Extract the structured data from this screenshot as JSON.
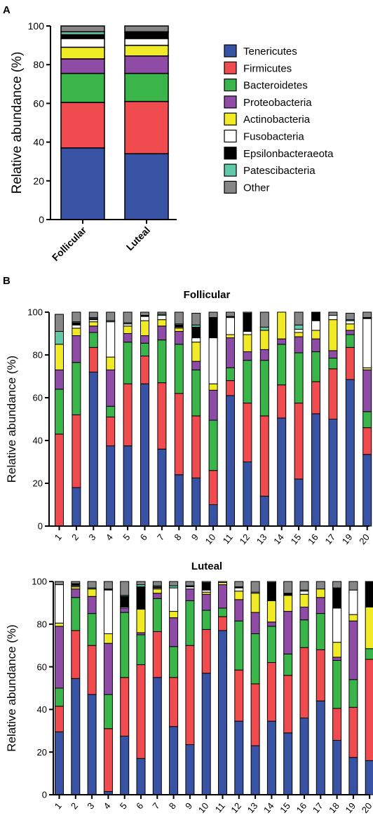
{
  "colors": {
    "Tenericutes": "#3953A4",
    "Firmicutes": "#F04B4E",
    "Bacteroidetes": "#3AB54A",
    "Proteobacteria": "#8E4CA6",
    "Actinobacteria": "#F1EA27",
    "Fusobacteria": "#FFFFFF",
    "Epsilonbacteraeota": "#000000",
    "Patescibacteria": "#62C9A8",
    "Other": "#868686"
  },
  "chart_data": [
    {
      "panel": "A",
      "type": "bar",
      "stacked": true,
      "title": "",
      "ylabel": "Relative abundance (%)",
      "ylim": [
        0,
        100
      ],
      "yticks": [
        "0",
        "20",
        "40",
        "60",
        "80",
        "100"
      ],
      "categories": [
        "Follicular",
        "Luteal"
      ],
      "legend": {
        "position": "right",
        "entries": [
          "Tenericutes",
          "Firmicutes",
          "Bacteroidetes",
          "Proteobacteria",
          "Actinobacteria",
          "Fusobacteria",
          "Epsilonbacteraeota",
          "Patescibacteria",
          "Other"
        ]
      },
      "series": [
        {
          "name": "Tenericutes",
          "values": [
            37,
            34
          ]
        },
        {
          "name": "Firmicutes",
          "values": [
            23.5,
            27
          ]
        },
        {
          "name": "Bacteroidetes",
          "values": [
            15,
            14.5
          ]
        },
        {
          "name": "Proteobacteria",
          "values": [
            7.5,
            9
          ]
        },
        {
          "name": "Actinobacteria",
          "values": [
            6,
            5.5
          ]
        },
        {
          "name": "Fusobacteria",
          "values": [
            4.5,
            3.5
          ]
        },
        {
          "name": "Epsilonbacteraeota",
          "values": [
            2,
            3
          ]
        },
        {
          "name": "Patescibacteria",
          "values": [
            1.5,
            0.5
          ]
        },
        {
          "name": "Other",
          "values": [
            3,
            3
          ]
        }
      ]
    },
    {
      "panel": "B",
      "type": "bar",
      "stacked": true,
      "title": "Follicular",
      "ylabel": "Relative abundance (%)",
      "ylim": [
        0,
        100
      ],
      "yticks": [
        "0",
        "20",
        "40",
        "60",
        "80",
        "100"
      ],
      "categories": [
        "1",
        "2",
        "3",
        "4",
        "5",
        "6",
        "7",
        "8",
        "9",
        "10",
        "11",
        "12",
        "13",
        "14",
        "15",
        "16",
        "17",
        "19",
        "20"
      ],
      "series": [
        {
          "name": "Tenericutes",
          "values": [
            0,
            18,
            72,
            37.5,
            37.5,
            66.5,
            36,
            24,
            22.5,
            10,
            61,
            30,
            14,
            50.5,
            22,
            52.5,
            50,
            68.5,
            33.5
          ]
        },
        {
          "name": "Firmicutes",
          "values": [
            43,
            34,
            11.5,
            13.5,
            29,
            13,
            31,
            38,
            29,
            16,
            7,
            27.5,
            37.5,
            15.5,
            35.5,
            15,
            23.5,
            15,
            12.5
          ]
        },
        {
          "name": "Bacteroidetes",
          "values": [
            21,
            24.5,
            7,
            5,
            19.5,
            6,
            20,
            23,
            21.5,
            23.5,
            6,
            20,
            26,
            19,
            23.5,
            14,
            5,
            6,
            7.5
          ]
        },
        {
          "name": "Proteobacteria",
          "values": [
            9,
            12.5,
            3,
            17,
            4,
            3.5,
            6.5,
            6,
            4,
            14,
            14,
            4,
            5,
            2.5,
            7.5,
            6,
            3.5,
            2,
            19.5
          ]
        },
        {
          "name": "Actinobacteria",
          "values": [
            12,
            3.5,
            2,
            6,
            3.5,
            7,
            3,
            1.5,
            9,
            3,
            1.5,
            8,
            9,
            13.5,
            2,
            4,
            14.5,
            3,
            1
          ]
        },
        {
          "name": "Fusobacteria",
          "values": [
            0,
            1.5,
            1,
            16.5,
            1,
            2,
            2,
            0.5,
            2,
            21.5,
            8,
            1.5,
            0,
            5,
            1.5,
            4.5,
            2,
            1.5,
            23
          ]
        },
        {
          "name": "Epsilonbacteraeota",
          "values": [
            0,
            1,
            0.5,
            0,
            0,
            0.5,
            0,
            1,
            5,
            9.5,
            0.5,
            8.5,
            0,
            0,
            0,
            4,
            0,
            0,
            0.5
          ]
        },
        {
          "name": "Patescibacteria",
          "values": [
            6,
            0.5,
            0.5,
            0.5,
            0.5,
            0,
            0.5,
            0.5,
            1,
            0,
            0,
            0,
            1.5,
            0.5,
            2,
            0,
            0,
            0.5,
            0
          ]
        },
        {
          "name": "Other",
          "values": [
            8,
            4.5,
            2.5,
            4,
            5,
            1.5,
            1,
            5.5,
            5.5,
            2.5,
            2,
            0.5,
            7,
            3.5,
            6,
            0,
            1.5,
            3,
            2.5
          ]
        }
      ]
    },
    {
      "panel": "B",
      "type": "bar",
      "stacked": true,
      "title": "Luteal",
      "ylabel": "Relative abundance (%)",
      "ylim": [
        0,
        100
      ],
      "yticks": [
        "0",
        "20",
        "40",
        "60",
        "80",
        "100"
      ],
      "categories": [
        "1",
        "2",
        "3",
        "4",
        "5",
        "6",
        "7",
        "8",
        "9",
        "10",
        "11",
        "12",
        "13",
        "14",
        "15",
        "16",
        "17",
        "18",
        "19",
        "20"
      ],
      "series": [
        {
          "name": "Tenericutes",
          "values": [
            29.5,
            54.5,
            47,
            1.5,
            27.5,
            17,
            55,
            32,
            23.5,
            57,
            77,
            34.5,
            23,
            34.5,
            29,
            36,
            44,
            25.5,
            17.5,
            16
          ]
        },
        {
          "name": "Firmicutes",
          "values": [
            12,
            22.5,
            23,
            29.5,
            27.5,
            44,
            21.5,
            23,
            46.5,
            20.5,
            6.5,
            24,
            29,
            27.5,
            27,
            33,
            24,
            15,
            23.5,
            47.5
          ]
        },
        {
          "name": "Bacteroidetes",
          "values": [
            8.5,
            15.5,
            15,
            16,
            30.5,
            14,
            15.5,
            14.5,
            21,
            9,
            4,
            23,
            23.5,
            17,
            10,
            13,
            17,
            22.5,
            13,
            5
          ]
        },
        {
          "name": "Proteobacteria",
          "values": [
            29,
            4,
            8,
            24,
            2,
            1,
            2.5,
            13.5,
            5.5,
            7.5,
            11,
            10,
            10,
            2,
            20,
            6,
            7.5,
            1.5,
            27.5,
            0
          ]
        },
        {
          "name": "Actinobacteria",
          "values": [
            1.5,
            1,
            3.5,
            4.5,
            0,
            11,
            2,
            3,
            0,
            1,
            1,
            4,
            9,
            10,
            7.5,
            6,
            4,
            7,
            3,
            19.5
          ]
        },
        {
          "name": "Fusobacteria",
          "values": [
            18,
            0.5,
            0,
            20.5,
            0.5,
            0,
            0.5,
            11,
            1,
            1,
            0,
            1.5,
            0.5,
            0,
            0,
            1.5,
            0,
            16,
            11.5,
            0
          ]
        },
        {
          "name": "Epsilonbacteraeota",
          "values": [
            0,
            1,
            0,
            0.5,
            5,
            10.5,
            0.5,
            0,
            0.5,
            3.5,
            0,
            0.5,
            0,
            8.5,
            1,
            0,
            0,
            9.5,
            0,
            12
          ]
        },
        {
          "name": "Patescibacteria",
          "values": [
            0,
            0,
            0.5,
            0,
            0.5,
            1,
            0.5,
            1,
            0,
            0.5,
            0,
            0,
            0,
            0,
            0,
            0.5,
            0,
            0,
            0,
            0
          ]
        },
        {
          "name": "Other",
          "values": [
            1.5,
            1,
            3,
            3.5,
            6.5,
            1.5,
            2.5,
            2,
            2,
            0,
            0.5,
            2.5,
            5,
            0.5,
            5.5,
            4,
            3.5,
            3,
            4,
            0
          ]
        }
      ]
    }
  ]
}
